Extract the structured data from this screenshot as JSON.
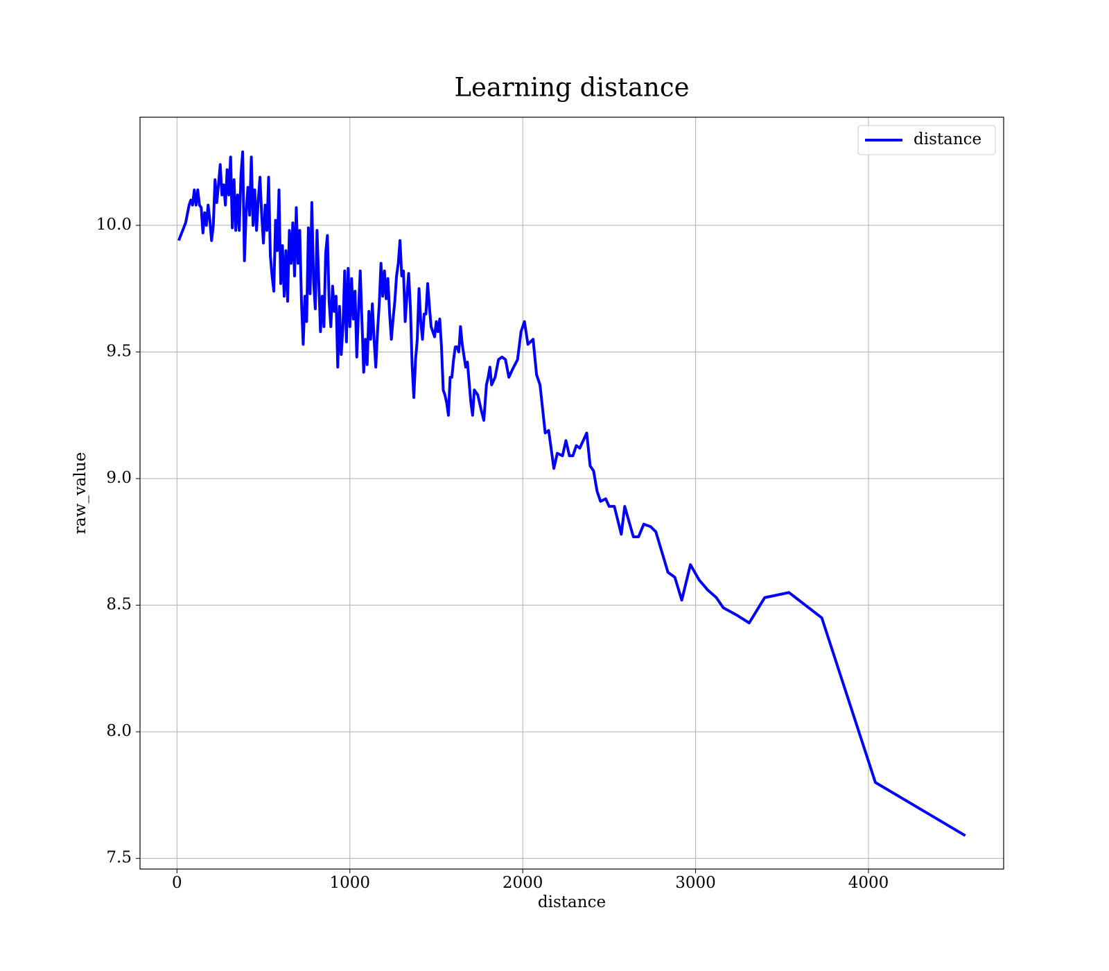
{
  "chart_data": {
    "type": "line",
    "title": "Learning distance",
    "xlabel": "distance",
    "ylabel": "raw_value",
    "x": [
      10,
      50,
      70,
      80,
      90,
      100,
      110,
      120,
      130,
      140,
      150,
      160,
      170,
      180,
      190,
      200,
      210,
      220,
      230,
      240,
      250,
      260,
      270,
      280,
      290,
      300,
      310,
      320,
      330,
      340,
      350,
      360,
      370,
      380,
      390,
      400,
      410,
      420,
      430,
      440,
      450,
      460,
      470,
      480,
      490,
      500,
      510,
      520,
      530,
      540,
      550,
      560,
      570,
      580,
      590,
      600,
      610,
      620,
      630,
      640,
      650,
      660,
      670,
      680,
      690,
      700,
      710,
      720,
      730,
      740,
      750,
      760,
      770,
      780,
      790,
      800,
      810,
      820,
      830,
      840,
      850,
      860,
      870,
      880,
      890,
      900,
      910,
      920,
      930,
      940,
      950,
      960,
      970,
      980,
      990,
      1000,
      1010,
      1020,
      1030,
      1040,
      1050,
      1060,
      1070,
      1080,
      1090,
      1100,
      1110,
      1120,
      1130,
      1140,
      1150,
      1160,
      1170,
      1180,
      1190,
      1200,
      1210,
      1220,
      1230,
      1240,
      1250,
      1260,
      1270,
      1280,
      1290,
      1300,
      1310,
      1320,
      1330,
      1340,
      1350,
      1360,
      1370,
      1380,
      1390,
      1400,
      1410,
      1420,
      1430,
      1440,
      1450,
      1460,
      1470,
      1480,
      1490,
      1500,
      1510,
      1520,
      1530,
      1540,
      1550,
      1560,
      1570,
      1580,
      1590,
      1600,
      1610,
      1620,
      1630,
      1640,
      1650,
      1670,
      1680,
      1700,
      1710,
      1720,
      1740,
      1760,
      1775,
      1790,
      1800,
      1810,
      1820,
      1840,
      1860,
      1880,
      1900,
      1920,
      1940,
      1970,
      1990,
      2010,
      2030,
      2060,
      2080,
      2100,
      2130,
      2150,
      2180,
      2200,
      2230,
      2250,
      2270,
      2290,
      2310,
      2330,
      2370,
      2390,
      2410,
      2430,
      2450,
      2480,
      2500,
      2530,
      2570,
      2590,
      2640,
      2670,
      2700,
      2740,
      2770,
      2840,
      2880,
      2920,
      2970,
      3020,
      3070,
      3120,
      3160,
      3240,
      3310,
      3400,
      3540,
      3730,
      4040,
      4560
    ],
    "series": [
      {
        "name": "distance",
        "color": "#0000ff",
        "values": [
          9.94,
          10.01,
          10.08,
          10.1,
          10.08,
          10.14,
          10.08,
          10.14,
          10.08,
          10.07,
          9.97,
          10.05,
          10.0,
          10.08,
          10.02,
          9.94,
          10.0,
          10.18,
          10.09,
          10.16,
          10.24,
          10.12,
          10.16,
          10.08,
          10.22,
          10.12,
          10.27,
          9.99,
          10.18,
          9.98,
          10.12,
          9.98,
          10.2,
          10.29,
          9.86,
          10.05,
          10.15,
          10.04,
          10.27,
          10.0,
          10.14,
          9.98,
          10.1,
          10.19,
          10.04,
          9.93,
          10.08,
          9.98,
          10.19,
          9.88,
          9.8,
          9.74,
          10.02,
          9.9,
          10.14,
          9.77,
          9.92,
          9.72,
          9.9,
          9.7,
          9.98,
          9.85,
          10.01,
          9.8,
          10.07,
          9.85,
          9.98,
          9.7,
          9.53,
          9.72,
          9.62,
          9.99,
          9.73,
          10.09,
          9.78,
          9.67,
          9.98,
          9.78,
          9.58,
          9.72,
          9.6,
          9.89,
          9.96,
          9.7,
          9.6,
          9.76,
          9.66,
          9.72,
          9.44,
          9.68,
          9.49,
          9.6,
          9.82,
          9.54,
          9.83,
          9.6,
          9.79,
          9.63,
          9.74,
          9.48,
          9.66,
          9.82,
          9.62,
          9.42,
          9.55,
          9.45,
          9.66,
          9.55,
          9.69,
          9.55,
          9.44,
          9.58,
          9.69,
          9.85,
          9.72,
          9.82,
          9.71,
          9.79,
          9.65,
          9.55,
          9.63,
          9.7,
          9.8,
          9.85,
          9.94,
          9.8,
          9.82,
          9.62,
          9.72,
          9.81,
          9.68,
          9.45,
          9.32,
          9.47,
          9.55,
          9.75,
          9.62,
          9.55,
          9.65,
          9.65,
          9.77,
          9.68,
          9.6,
          9.58,
          9.56,
          9.62,
          9.58,
          9.63,
          9.52,
          9.35,
          9.33,
          9.3,
          9.25,
          9.4,
          9.4,
          9.47,
          9.52,
          9.52,
          9.5,
          9.6,
          9.53,
          9.44,
          9.46,
          9.3,
          9.25,
          9.35,
          9.33,
          9.27,
          9.23,
          9.37,
          9.4,
          9.44,
          9.37,
          9.4,
          9.47,
          9.48,
          9.47,
          9.4,
          9.43,
          9.47,
          9.58,
          9.62,
          9.53,
          9.55,
          9.41,
          9.37,
          9.18,
          9.19,
          9.04,
          9.1,
          9.09,
          9.15,
          9.09,
          9.09,
          9.13,
          9.12,
          9.18,
          9.05,
          9.03,
          8.95,
          8.91,
          8.92,
          8.89,
          8.89,
          8.78,
          8.89,
          8.77,
          8.77,
          8.82,
          8.81,
          8.79,
          8.63,
          8.61,
          8.52,
          8.66,
          8.6,
          8.56,
          8.53,
          8.49,
          8.46,
          8.43,
          8.53,
          8.55,
          8.45,
          7.8,
          7.59
        ]
      }
    ],
    "xlim": [
      -214,
      4782
    ],
    "ylim": [
      7.458,
      10.427
    ],
    "xticks": [
      0,
      1000,
      2000,
      3000,
      4000
    ],
    "yticks": [
      7.5,
      {
        "value": 8,
        "label": "8.0"
      },
      8.5,
      {
        "value": 9,
        "label": "9.0"
      },
      9.5,
      {
        "value": 10,
        "label": "10.0"
      }
    ],
    "grid": true,
    "legend": "upper right"
  }
}
